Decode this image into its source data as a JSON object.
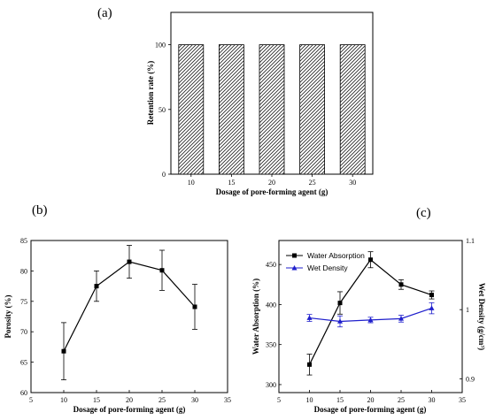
{
  "panel_labels": [
    "(a)",
    "(b)",
    "(c)"
  ],
  "chart_data": [
    {
      "type": "bar",
      "panel": "(a)",
      "title": "",
      "xlabel": "Dosage of pore-forming agent (g)",
      "ylabel": "Retention rate (%)",
      "categories": [
        "10",
        "15",
        "20",
        "25",
        "30"
      ],
      "values": [
        100,
        100,
        100,
        100,
        100
      ],
      "ylim": [
        0,
        125
      ],
      "yticks": [
        0,
        50,
        100
      ],
      "pattern": "diagonal-hatch",
      "grid": false
    },
    {
      "type": "line",
      "panel": "(b)",
      "title": "",
      "xlabel": "Dosage of pore-forming agent (g)",
      "ylabel": "Porosity (%)",
      "xlim": [
        5,
        35
      ],
      "ylim": [
        60,
        85
      ],
      "xticks": [
        5,
        10,
        15,
        20,
        25,
        30,
        35
      ],
      "yticks": [
        60,
        65,
        70,
        75,
        80,
        85
      ],
      "series": [
        {
          "x": [
            10,
            15,
            20,
            25,
            30
          ],
          "values": [
            66.8,
            77.5,
            81.5,
            80.1,
            74.1
          ],
          "errors": [
            4.7,
            2.5,
            2.7,
            3.3,
            3.7
          ],
          "marker": "square",
          "color": "#000000"
        }
      ],
      "grid": false
    },
    {
      "type": "line",
      "panel": "(c)",
      "title": "",
      "xlabel": "Dosage of pore-forming agent (g)",
      "ylabel": "Water Absorption (%)",
      "y2label": "Wet Density (g/cm³)",
      "xlim": [
        5,
        35
      ],
      "ylim": [
        290,
        480
      ],
      "y2lim": [
        0.88,
        1.1
      ],
      "xticks": [
        5,
        10,
        15,
        20,
        25,
        30,
        35
      ],
      "yticks": [
        300,
        350,
        400,
        450
      ],
      "y2ticks": [
        0.9,
        1.0,
        1.1
      ],
      "legend_position": "top-left",
      "series": [
        {
          "name": "Water Absorption",
          "axis": "left",
          "x": [
            10,
            15,
            20,
            25,
            30
          ],
          "values": [
            325,
            402,
            456,
            425,
            412
          ],
          "errors": [
            13,
            14,
            10,
            6,
            5
          ],
          "marker": "square",
          "color": "#000000"
        },
        {
          "name": "Wet Density",
          "axis": "right",
          "x": [
            10,
            15,
            20,
            25,
            30
          ],
          "values": [
            0.988,
            0.983,
            0.985,
            0.987,
            1.002
          ],
          "errors": [
            0.005,
            0.008,
            0.004,
            0.005,
            0.008
          ],
          "marker": "triangle",
          "color": "#1f1fcc"
        }
      ],
      "grid": false
    }
  ]
}
